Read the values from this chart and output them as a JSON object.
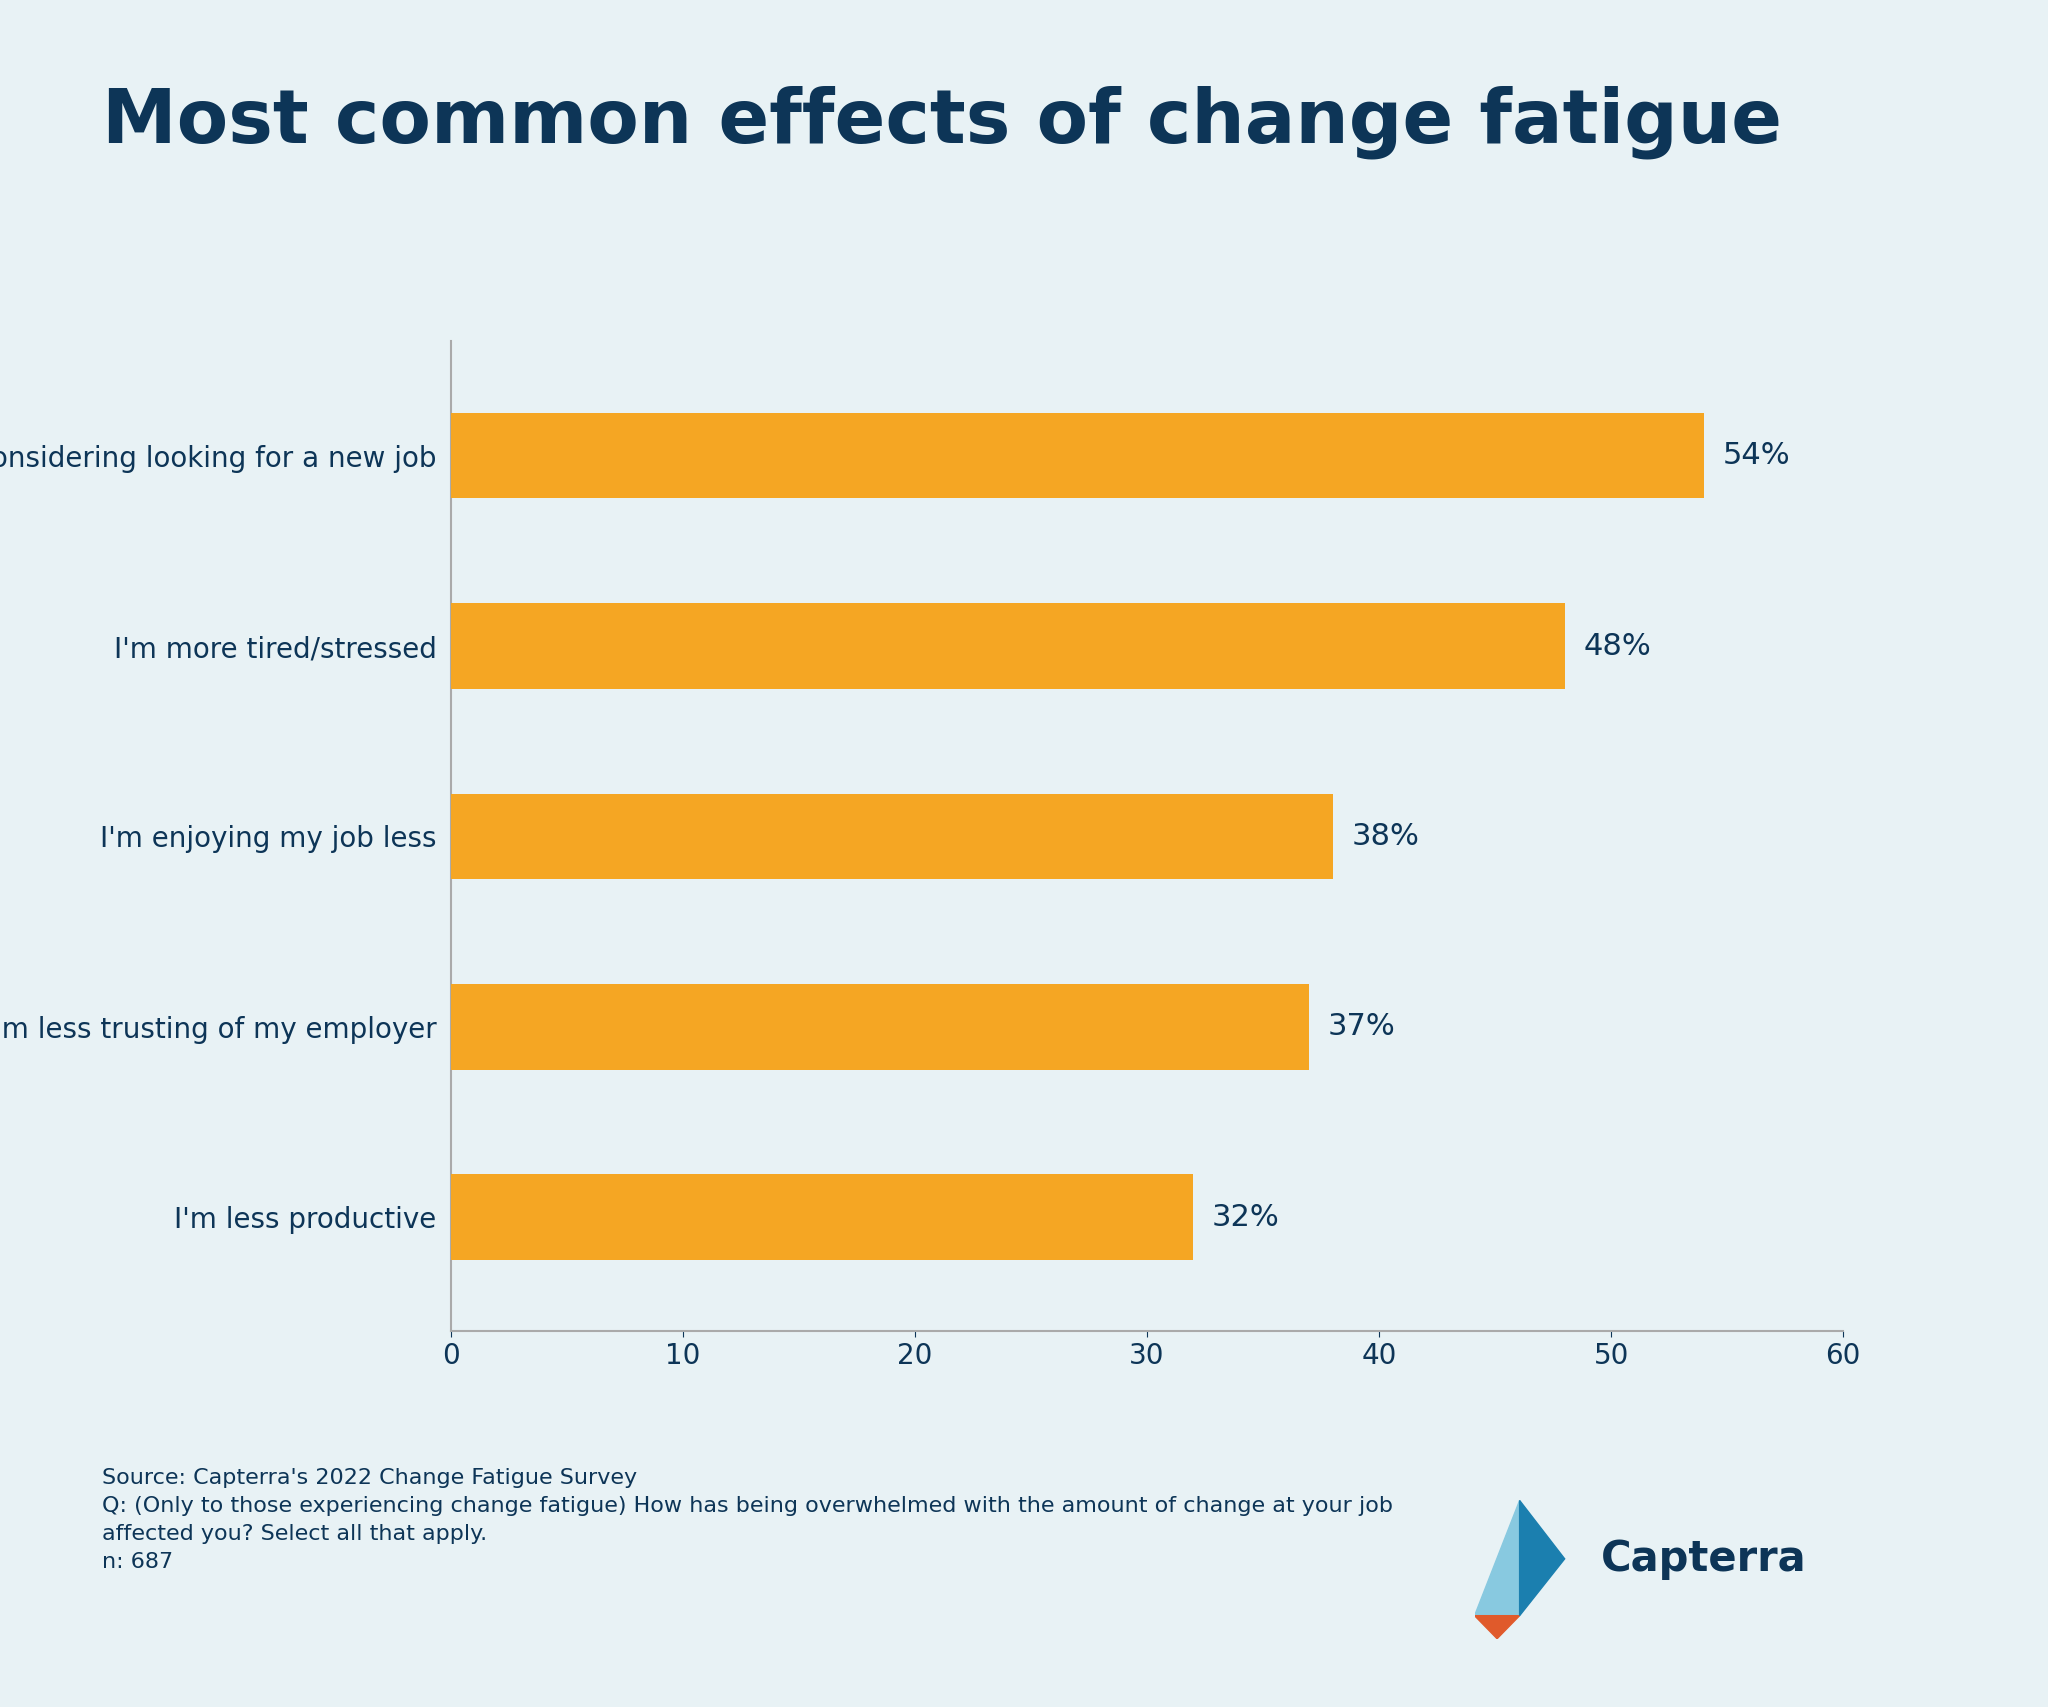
{
  "title": "Most common effects of change fatigue",
  "categories": [
    "I'm less productive",
    "I'm less trusting of my employer",
    "I'm enjoying my job less",
    "I'm more tired/stressed",
    "I'm considering looking for a new job"
  ],
  "values": [
    32,
    37,
    38,
    48,
    54
  ],
  "bar_color": "#F5A623",
  "label_color": "#0D3557",
  "title_color": "#0D3557",
  "background_color": "#E8F2F5",
  "tick_color": "#0D3557",
  "source_line1": "Source: Capterra's 2022 Change Fatigue Survey",
  "source_line2": "Q: (Only to those experiencing change fatigue) How has being overwhelmed with the amount of change at your job",
  "source_line3": "affected you? Select all that apply.",
  "source_line4": "n: 687",
  "xlim": [
    0,
    60
  ],
  "xticks": [
    0,
    10,
    20,
    30,
    40,
    50,
    60
  ],
  "bar_height": 0.45,
  "spine_color": "#aaaaaa"
}
